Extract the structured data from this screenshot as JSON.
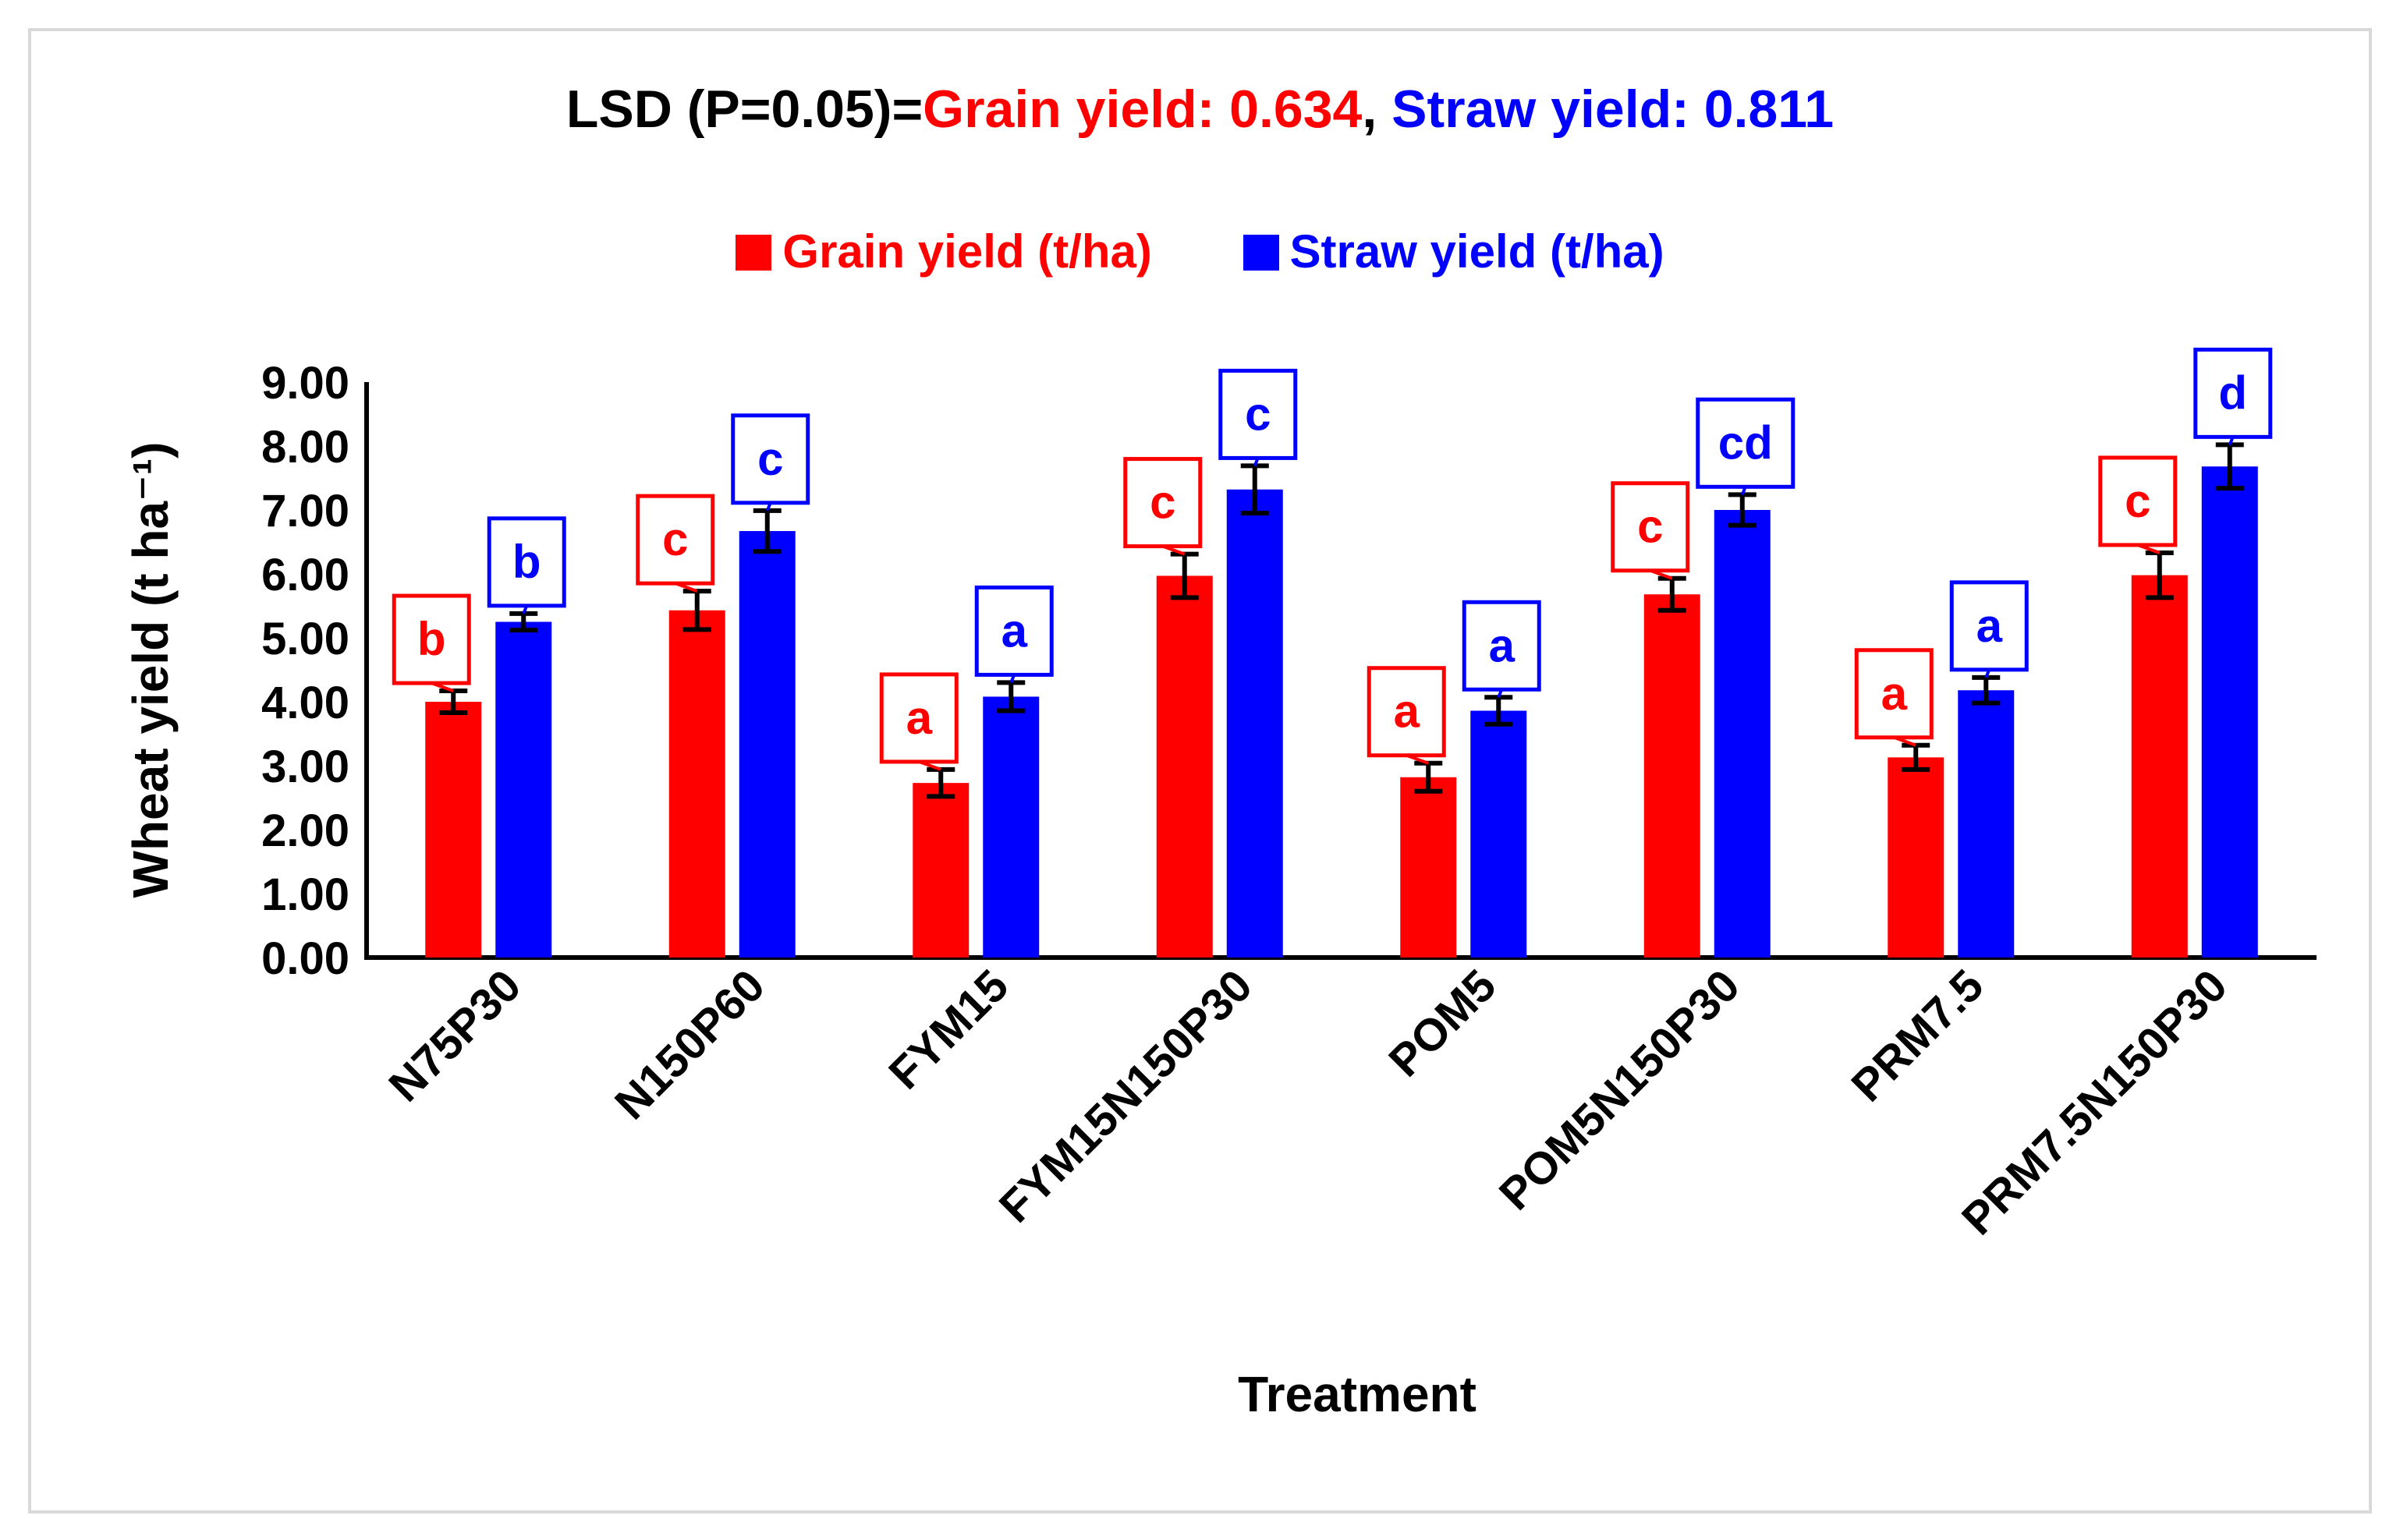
{
  "title": {
    "prefix": "LSD (P=0.05)=",
    "grain_part": "Grain yield: 0.634",
    "separator": ", ",
    "straw_part": "Straw yield: 0.811"
  },
  "colors": {
    "grain": "#ff0000",
    "straw": "#0000ff",
    "text": "#000000",
    "error": "#000000"
  },
  "chart_data": {
    "type": "bar",
    "title": "LSD (P=0.05)=Grain yield: 0.634, Straw yield: 0.811",
    "xlabel": "Treatment",
    "ylabel": "Wheat yield (t ha⁻¹)",
    "ylim": [
      0,
      9
    ],
    "yticks": [
      "0.00",
      "1.00",
      "2.00",
      "3.00",
      "4.00",
      "5.00",
      "6.00",
      "7.00",
      "8.00",
      "9.00"
    ],
    "categories": [
      "N75P30",
      "N150P60",
      "FYM15",
      "FYM15N150P30",
      "POM5",
      "POM5N150P30",
      "PRM7.5",
      "PRM7.5N150P30"
    ],
    "series": [
      {
        "name": "Grain yield (t/ha)",
        "color": "#ff0000",
        "values": [
          4.0,
          5.43,
          2.73,
          5.97,
          2.82,
          5.68,
          3.13,
          5.98
        ],
        "errors": [
          0.17,
          0.3,
          0.21,
          0.34,
          0.22,
          0.25,
          0.19,
          0.35
        ],
        "letters": [
          "b",
          "c",
          "a",
          "c",
          "a",
          "c",
          "a",
          "c"
        ]
      },
      {
        "name": "Straw yield (t/ha)",
        "color": "#0000ff",
        "values": [
          5.25,
          6.67,
          4.08,
          7.32,
          3.86,
          7.0,
          4.18,
          7.68
        ],
        "errors": [
          0.13,
          0.32,
          0.22,
          0.37,
          0.21,
          0.24,
          0.2,
          0.34
        ],
        "letters": [
          "b",
          "c",
          "a",
          "c",
          "a",
          "cd",
          "a",
          "d"
        ]
      }
    ],
    "legend_position": "top-center",
    "grid": false
  }
}
